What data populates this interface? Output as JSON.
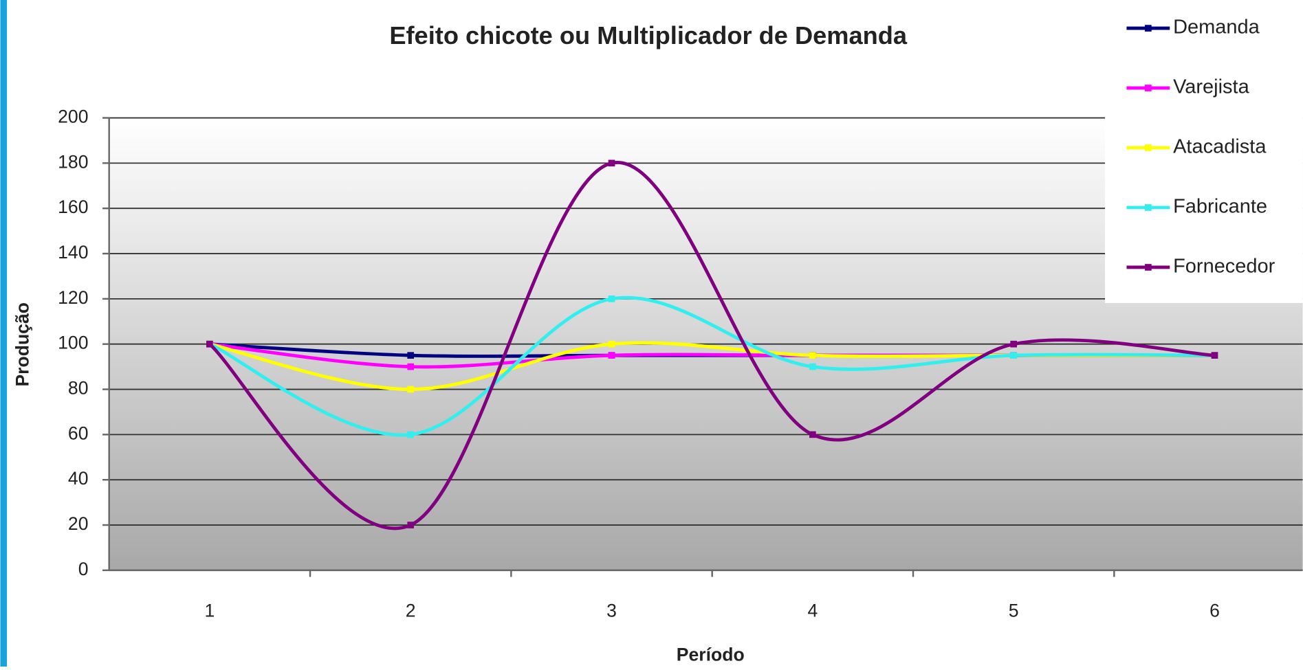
{
  "chart_data": {
    "type": "line",
    "title": "Efeito chicote ou Multiplicador de Demanda",
    "x_label": "Período",
    "y_label": "Produção",
    "categories": [
      "1",
      "2",
      "3",
      "4",
      "5",
      "6"
    ],
    "series": [
      {
        "name": "Demanda",
        "color": "#000080",
        "values": [
          100,
          95,
          95,
          95,
          95,
          95
        ]
      },
      {
        "name": "Varejista",
        "color": "#ff00ff",
        "values": [
          100,
          90,
          95,
          95,
          95,
          95
        ]
      },
      {
        "name": "Atacadista",
        "color": "#ffff00",
        "values": [
          100,
          80,
          100,
          95,
          95,
          95
        ]
      },
      {
        "name": "Fabricante",
        "color": "#33eeee",
        "values": [
          100,
          60,
          120,
          90,
          95,
          95
        ]
      },
      {
        "name": "Fornecedor",
        "color": "#800080",
        "values": [
          100,
          20,
          180,
          60,
          100,
          95
        ]
      }
    ],
    "ylim": [
      0,
      200
    ],
    "yticks": [
      0,
      20,
      40,
      60,
      80,
      100,
      120,
      140,
      160,
      180,
      200
    ],
    "grid": true,
    "smooth": true,
    "legend": "top-right"
  }
}
